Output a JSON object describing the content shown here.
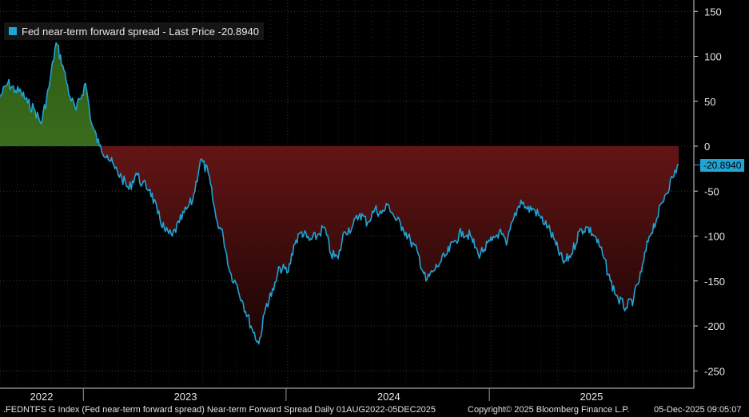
{
  "chart_data": {
    "type": "area",
    "legend": "Fed near-term forward spread - Last Price -20.8940",
    "last_value_label": "-20.8940",
    "last_value": -20.894,
    "series_color": "#1fa4d6",
    "positive_fill": "#4e8a2a",
    "negative_fill": "#8b1e1e",
    "ylim": [
      -255,
      155
    ],
    "y_ticks": [
      150,
      100,
      50,
      0,
      -50,
      -100,
      -150,
      -200,
      -250
    ],
    "y_tick_labels": [
      "150",
      "100",
      "50",
      "0",
      "-50",
      "-100",
      "-150",
      "-200",
      "-250"
    ],
    "x_ticks": [
      "2022",
      "2023",
      "2024",
      "2025"
    ],
    "x_range": [
      "2022-08-01",
      "2025-12-05"
    ],
    "x": [
      "2022-08-01",
      "2022-08-15",
      "2022-08-29",
      "2022-09-08",
      "2022-09-20",
      "2022-10-03",
      "2022-10-14",
      "2022-10-28",
      "2022-11-10",
      "2022-11-22",
      "2022-12-05",
      "2022-12-16",
      "2023-01-02",
      "2023-01-13",
      "2023-01-27",
      "2023-02-10",
      "2023-02-24",
      "2023-03-08",
      "2023-03-21",
      "2023-04-03",
      "2023-04-14",
      "2023-04-28",
      "2023-05-12",
      "2023-05-26",
      "2023-06-07",
      "2023-06-20",
      "2023-07-03",
      "2023-07-14",
      "2023-07-28",
      "2023-08-11",
      "2023-08-25",
      "2023-09-07",
      "2023-09-19",
      "2023-10-02",
      "2023-10-13",
      "2023-10-27",
      "2023-11-10",
      "2023-11-24",
      "2023-12-07",
      "2023-12-18",
      "2024-01-02",
      "2024-01-12",
      "2024-01-26",
      "2024-02-09",
      "2024-02-23",
      "2024-03-07",
      "2024-03-19",
      "2024-04-01",
      "2024-04-12",
      "2024-04-26",
      "2024-05-10",
      "2024-05-24",
      "2024-06-06",
      "2024-06-18",
      "2024-07-01",
      "2024-07-12",
      "2024-07-26",
      "2024-08-09",
      "2024-08-23",
      "2024-09-06",
      "2024-09-18",
      "2024-10-01",
      "2024-10-14",
      "2024-10-28",
      "2024-11-11",
      "2024-11-25",
      "2024-12-09",
      "2024-12-20",
      "2025-01-03",
      "2025-01-16",
      "2025-01-29",
      "2025-02-11",
      "2025-02-24",
      "2025-03-07",
      "2025-03-19",
      "2025-04-01",
      "2025-04-14",
      "2025-04-28",
      "2025-05-12",
      "2025-05-26",
      "2025-06-09",
      "2025-06-23",
      "2025-07-07",
      "2025-07-21",
      "2025-08-04",
      "2025-08-18",
      "2025-09-01",
      "2025-09-15",
      "2025-09-29",
      "2025-10-13",
      "2025-10-27",
      "2025-11-10",
      "2025-11-24",
      "2025-12-05"
    ],
    "values": [
      55,
      70,
      62,
      60,
      48,
      40,
      25,
      65,
      115,
      90,
      55,
      40,
      70,
      25,
      0,
      -10,
      -25,
      -35,
      -48,
      -30,
      -42,
      -48,
      -75,
      -95,
      -100,
      -85,
      -70,
      -60,
      -15,
      -30,
      -80,
      -100,
      -140,
      -155,
      -175,
      -200,
      -220,
      -175,
      -160,
      -135,
      -140,
      -110,
      -95,
      -105,
      -100,
      -90,
      -120,
      -125,
      -95,
      -90,
      -75,
      -85,
      -70,
      -75,
      -65,
      -80,
      -90,
      -105,
      -120,
      -150,
      -140,
      -130,
      -120,
      -105,
      -95,
      -100,
      -120,
      -115,
      -105,
      -95,
      -110,
      -80,
      -60,
      -70,
      -70,
      -80,
      -90,
      -110,
      -130,
      -120,
      -95,
      -90,
      -100,
      -120,
      -150,
      -170,
      -180,
      -170,
      -140,
      -100,
      -80,
      -55,
      -35,
      -20
    ],
    "values_note": "estimated from chart"
  },
  "footer": {
    "left": ".FEDNTFS G Index (Fed near-term forward spread) Near-term Forward Spread Daily 01AUG2022-05DEC2025",
    "copyright": "Copyright© 2025 Bloomberg Finance L.P.",
    "timestamp": "05-Dec-2025 09:05:07"
  }
}
